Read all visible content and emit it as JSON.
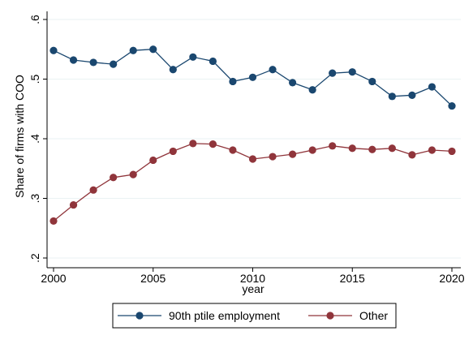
{
  "chart_data": {
    "type": "line",
    "title": "",
    "xlabel": "year",
    "ylabel": "Share of firms with COO",
    "x": [
      2000,
      2001,
      2002,
      2003,
      2004,
      2005,
      2006,
      2007,
      2008,
      2009,
      2010,
      2011,
      2012,
      2013,
      2014,
      2015,
      2016,
      2017,
      2018,
      2019,
      2020
    ],
    "xlim": [
      2000,
      2020
    ],
    "ylim": [
      0.2,
      0.6
    ],
    "xticks": [
      2000,
      2005,
      2010,
      2015,
      2020
    ],
    "xtick_labels": [
      "2000",
      "2005",
      "2010",
      "2015",
      "2020"
    ],
    "yticks": [
      0.2,
      0.3,
      0.4,
      0.5,
      0.6
    ],
    "ytick_labels": [
      ".2",
      ".3",
      ".4",
      ".5",
      ".6"
    ],
    "grid": "horizontal",
    "legend_position": "bottom",
    "series": [
      {
        "name": "90th ptile employment",
        "color": "#1a476f",
        "values": [
          0.548,
          0.532,
          0.528,
          0.525,
          0.548,
          0.55,
          0.516,
          0.537,
          0.53,
          0.496,
          0.503,
          0.516,
          0.494,
          0.482,
          0.51,
          0.512,
          0.496,
          0.471,
          0.473,
          0.487,
          0.455
        ]
      },
      {
        "name": "Other",
        "color": "#90353b",
        "values": [
          0.262,
          0.289,
          0.314,
          0.335,
          0.34,
          0.364,
          0.379,
          0.392,
          0.391,
          0.381,
          0.366,
          0.37,
          0.374,
          0.381,
          0.388,
          0.384,
          0.382,
          0.384,
          0.373,
          0.381,
          0.379
        ]
      }
    ]
  }
}
